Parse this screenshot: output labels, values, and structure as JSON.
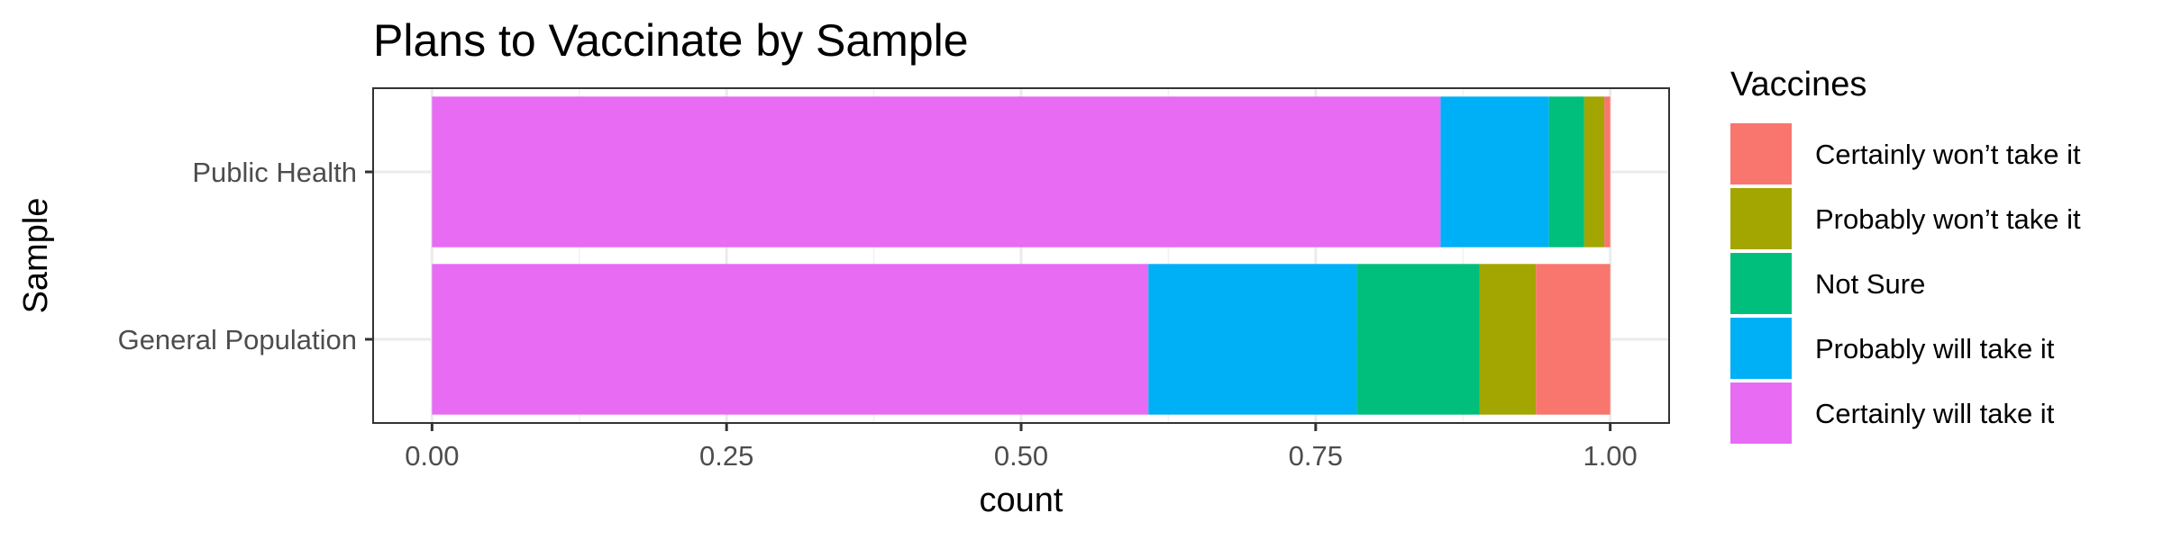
{
  "chart_data": {
    "type": "bar",
    "orientation": "horizontal",
    "stacked": true,
    "title": "Plans to Vaccinate by Sample",
    "xlabel": "count",
    "ylabel": "Sample",
    "xlim": [
      -0.05,
      1.05
    ],
    "x_ticks": [
      0,
      0.25,
      0.5,
      0.75,
      1.0
    ],
    "x_tick_labels": [
      "0.00",
      "0.25",
      "0.50",
      "0.75",
      "1.00"
    ],
    "grid": true,
    "categories": [
      "Public Health",
      "General Population"
    ],
    "legend": {
      "title": "Vaccines",
      "position": "right",
      "entries": [
        "Certainly won’t take it",
        "Probably won’t take it",
        "Not Sure",
        "Probably will take it",
        "Certainly will take it"
      ]
    },
    "stack_order": [
      "Certainly will take it",
      "Probably will take it",
      "Not Sure",
      "Probably won’t take it",
      "Certainly won’t take it"
    ],
    "series": [
      {
        "name": "Certainly will take it",
        "color": "#E76BF3",
        "values": [
          0.856,
          0.608
        ]
      },
      {
        "name": "Probably will take it",
        "color": "#00B0F6",
        "values": [
          0.092,
          0.177
        ]
      },
      {
        "name": "Not Sure",
        "color": "#00BF7D",
        "values": [
          0.03,
          0.104
        ]
      },
      {
        "name": "Probably won’t take it",
        "color": "#A3A500",
        "values": [
          0.017,
          0.048
        ]
      },
      {
        "name": "Certainly won’t take it",
        "color": "#F8766D",
        "values": [
          0.005,
          0.063
        ]
      }
    ]
  }
}
